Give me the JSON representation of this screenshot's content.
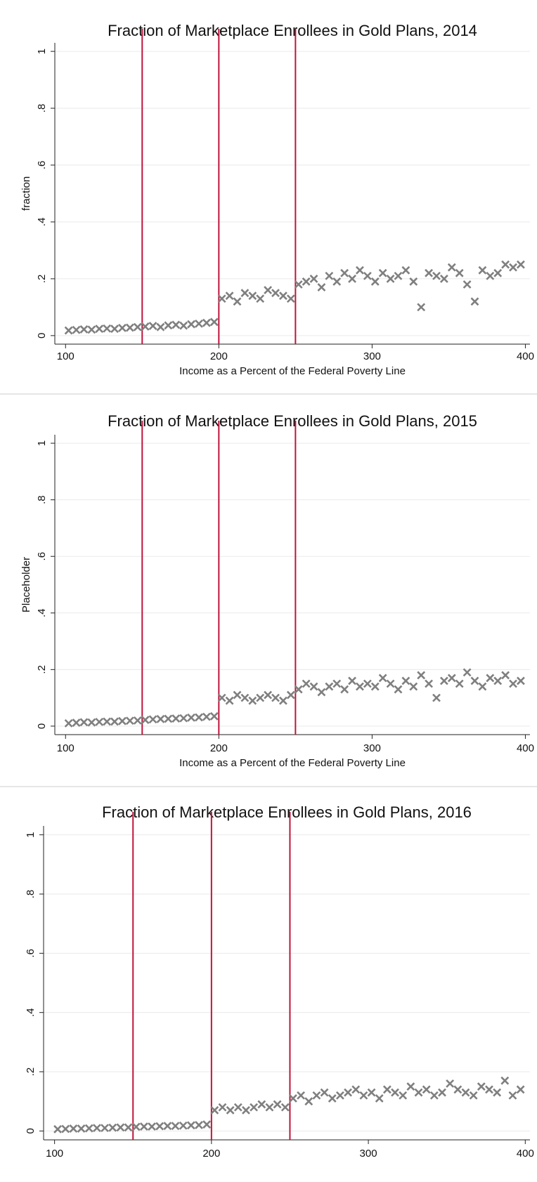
{
  "chart_data": [
    {
      "type": "scatter",
      "title": "Fraction of Marketplace Enrollees in Gold Plans, 2014",
      "x_label": "Income as a Percent of the Federal Poverty Line",
      "y_label": "fraction",
      "color": "#7f7f7f",
      "vline_color": "#c0143c",
      "vlines": [
        150,
        200,
        250
      ],
      "grid": true,
      "xlim": [
        93,
        403
      ],
      "ylim": [
        -0.03,
        1.03
      ],
      "xticks": [
        100,
        200,
        300,
        400
      ],
      "yticks": [
        0,
        {
          "value": 0.2,
          "label": ".2"
        },
        {
          "value": 0.4,
          "label": ".4"
        },
        {
          "value": 0.6,
          "label": ".6"
        },
        {
          "value": 0.8,
          "label": ".8"
        },
        1
      ],
      "x": [
        102,
        107,
        112,
        117,
        122,
        127,
        132,
        137,
        142,
        147,
        152,
        157,
        162,
        167,
        172,
        177,
        182,
        187,
        192,
        197,
        202,
        207,
        212,
        217,
        222,
        227,
        232,
        237,
        242,
        247,
        252,
        257,
        262,
        267,
        272,
        277,
        282,
        287,
        292,
        297,
        302,
        307,
        312,
        317,
        322,
        327,
        332,
        337,
        342,
        347,
        352,
        357,
        362,
        367,
        372,
        377,
        382,
        387,
        392,
        397
      ],
      "values": [
        0.018,
        0.02,
        0.022,
        0.021,
        0.024,
        0.025,
        0.024,
        0.027,
        0.028,
        0.03,
        0.032,
        0.034,
        0.03,
        0.036,
        0.038,
        0.035,
        0.04,
        0.042,
        0.045,
        0.048,
        0.13,
        0.14,
        0.12,
        0.15,
        0.14,
        0.13,
        0.16,
        0.15,
        0.14,
        0.13,
        0.18,
        0.19,
        0.2,
        0.17,
        0.21,
        0.19,
        0.22,
        0.2,
        0.23,
        0.21,
        0.19,
        0.22,
        0.2,
        0.21,
        0.23,
        0.19,
        0.1,
        0.22,
        0.21,
        0.2,
        0.24,
        0.22,
        0.18,
        0.12,
        0.23,
        0.21,
        0.22,
        0.25,
        0.24,
        0.25
      ]
    },
    {
      "type": "scatter",
      "title": "Fraction of Marketplace Enrollees in Gold Plans, 2015",
      "x_label": "Income as a Percent of the Federal Poverty Line",
      "y_label": "Placeholder",
      "color": "#7f7f7f",
      "vline_color": "#c0143c",
      "vlines": [
        150,
        200,
        250
      ],
      "grid": true,
      "xlim": [
        93,
        403
      ],
      "ylim": [
        -0.03,
        1.03
      ],
      "xticks": [
        100,
        200,
        300,
        400
      ],
      "yticks": [
        0,
        {
          "value": 0.2,
          "label": ".2"
        },
        {
          "value": 0.4,
          "label": ".4"
        },
        {
          "value": 0.6,
          "label": ".6"
        },
        {
          "value": 0.8,
          "label": ".8"
        },
        1
      ],
      "x": [
        102,
        107,
        112,
        117,
        122,
        127,
        132,
        137,
        142,
        147,
        152,
        157,
        162,
        167,
        172,
        177,
        182,
        187,
        192,
        197,
        202,
        207,
        212,
        217,
        222,
        227,
        232,
        237,
        242,
        247,
        252,
        257,
        262,
        267,
        272,
        277,
        282,
        287,
        292,
        297,
        302,
        307,
        312,
        317,
        322,
        327,
        332,
        337,
        342,
        347,
        352,
        357,
        362,
        367,
        372,
        377,
        382,
        387,
        392,
        397
      ],
      "values": [
        0.01,
        0.012,
        0.014,
        0.013,
        0.015,
        0.016,
        0.016,
        0.018,
        0.019,
        0.02,
        0.022,
        0.024,
        0.025,
        0.026,
        0.027,
        0.028,
        0.03,
        0.031,
        0.033,
        0.035,
        0.1,
        0.09,
        0.11,
        0.1,
        0.09,
        0.1,
        0.11,
        0.1,
        0.09,
        0.11,
        0.13,
        0.15,
        0.14,
        0.12,
        0.14,
        0.15,
        0.13,
        0.16,
        0.14,
        0.15,
        0.14,
        0.17,
        0.15,
        0.13,
        0.16,
        0.14,
        0.18,
        0.15,
        0.1,
        0.16,
        0.17,
        0.15,
        0.19,
        0.16,
        0.14,
        0.17,
        0.16,
        0.18,
        0.15,
        0.16
      ]
    },
    {
      "type": "scatter",
      "title": "Fraction of Marketplace Enrollees in Gold Plans, 2016",
      "color": "#7f7f7f",
      "vline_color": "#c0143c",
      "vlines": [
        150,
        200,
        250
      ],
      "grid": true,
      "xlim": [
        93,
        403
      ],
      "ylim": [
        -0.03,
        1.03
      ],
      "xticks": [
        100,
        200,
        300,
        400
      ],
      "yticks": [
        0,
        {
          "value": 0.2,
          "label": ".2"
        },
        {
          "value": 0.4,
          "label": ".4"
        },
        {
          "value": 0.6,
          "label": ".6"
        },
        {
          "value": 0.8,
          "label": ".8"
        },
        1
      ],
      "x": [
        102,
        107,
        112,
        117,
        122,
        127,
        132,
        137,
        142,
        147,
        152,
        157,
        162,
        167,
        172,
        177,
        182,
        187,
        192,
        197,
        202,
        207,
        212,
        217,
        222,
        227,
        232,
        237,
        242,
        247,
        252,
        257,
        262,
        267,
        272,
        277,
        282,
        287,
        292,
        297,
        302,
        307,
        312,
        317,
        322,
        327,
        332,
        337,
        342,
        347,
        352,
        357,
        362,
        367,
        372,
        377,
        382,
        387,
        392,
        397
      ],
      "values": [
        0.006,
        0.007,
        0.008,
        0.008,
        0.009,
        0.01,
        0.01,
        0.011,
        0.012,
        0.012,
        0.014,
        0.015,
        0.015,
        0.016,
        0.017,
        0.017,
        0.018,
        0.019,
        0.02,
        0.022,
        0.07,
        0.08,
        0.07,
        0.08,
        0.07,
        0.08,
        0.09,
        0.08,
        0.09,
        0.08,
        0.11,
        0.12,
        0.1,
        0.12,
        0.13,
        0.11,
        0.12,
        0.13,
        0.14,
        0.12,
        0.13,
        0.11,
        0.14,
        0.13,
        0.12,
        0.15,
        0.13,
        0.14,
        0.12,
        0.13,
        0.16,
        0.14,
        0.13,
        0.12,
        0.15,
        0.14,
        0.13,
        0.17,
        0.12,
        0.14
      ]
    }
  ]
}
